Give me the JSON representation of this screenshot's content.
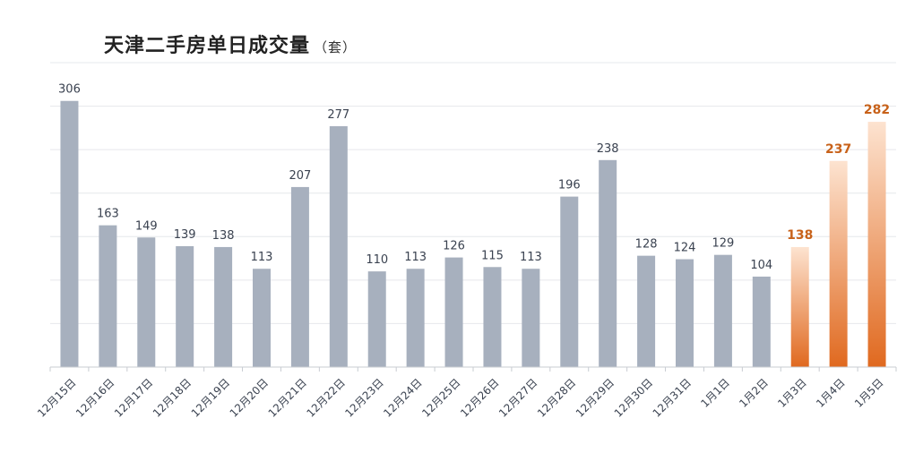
{
  "title": {
    "main": "天津二手房单日成交量",
    "unit": "（套）"
  },
  "chart_data": {
    "type": "bar",
    "title": "天津二手房单日成交量（套）",
    "categories": [
      "12月15日",
      "12月16日",
      "12月17日",
      "12月18日",
      "12月19日",
      "12月20日",
      "12月21日",
      "12月22日",
      "12月23日",
      "12月24日",
      "12月25日",
      "12月26日",
      "12月27日",
      "12月28日",
      "12月29日",
      "12月30日",
      "12月31日",
      "1月1日",
      "1月2日",
      "1月3日",
      "1月4日",
      "1月5日"
    ],
    "values": [
      306,
      163,
      149,
      139,
      138,
      113,
      207,
      277,
      110,
      113,
      126,
      115,
      113,
      196,
      238,
      128,
      124,
      129,
      104,
      138,
      237,
      282
    ],
    "highlight_categories": [
      "1月3日",
      "1月4日",
      "1月5日"
    ],
    "ylim": [
      0,
      350
    ],
    "grid": true,
    "colors": {
      "bar": "#a7b0be",
      "highlight_dark": "#e0691f",
      "highlight_light": "#fde3d0",
      "highlight_label": "#c8621a"
    }
  }
}
